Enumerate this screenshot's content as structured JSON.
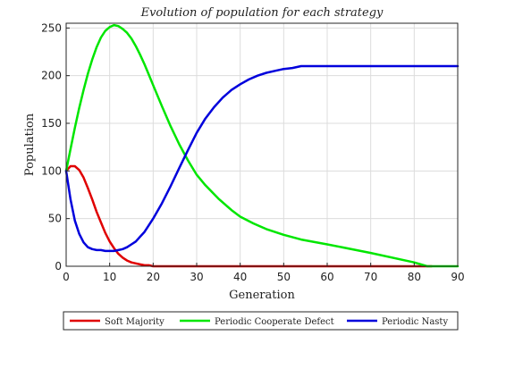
{
  "chart_data": {
    "type": "line",
    "title": "Evolution of population for each strategy",
    "xlabel": "Generation",
    "ylabel": "Population",
    "xlim": [
      0,
      90
    ],
    "ylim": [
      0,
      255
    ],
    "xticks": [
      0,
      10,
      20,
      30,
      40,
      50,
      60,
      70,
      80,
      90
    ],
    "yticks": [
      0,
      50,
      100,
      150,
      200,
      250
    ],
    "grid": true,
    "legend": "bottom-outside",
    "series": [
      {
        "name": "Soft Majority",
        "color": "#e00000",
        "x": [
          0,
          1,
          2,
          3,
          4,
          5,
          6,
          7,
          8,
          9,
          10,
          11,
          12,
          13,
          14,
          15,
          16,
          17,
          18,
          19,
          20,
          25,
          30,
          40,
          50,
          60,
          70,
          80,
          84
        ],
        "y": [
          100,
          105,
          105,
          101,
          93,
          82,
          70,
          57,
          46,
          35,
          26,
          19,
          13,
          9,
          6,
          4,
          3,
          2,
          1,
          1,
          0,
          0,
          0,
          0,
          0,
          0,
          0,
          0,
          0
        ]
      },
      {
        "name": "Periodic Cooperate Defect",
        "color": "#00e600",
        "x": [
          0,
          1,
          2,
          3,
          4,
          5,
          6,
          7,
          8,
          9,
          10,
          11,
          12,
          13,
          14,
          15,
          16,
          17,
          18,
          19,
          20,
          22,
          24,
          26,
          28,
          30,
          32,
          35,
          38,
          40,
          43,
          46,
          50,
          54,
          60,
          70,
          80,
          83,
          84,
          86,
          88,
          90
        ],
        "y": [
          100,
          123,
          145,
          166,
          185,
          202,
          217,
          230,
          240,
          247,
          251,
          253,
          252,
          249,
          245,
          239,
          231,
          222,
          212,
          201,
          190,
          168,
          147,
          128,
          111,
          96,
          85,
          71,
          59,
          52,
          45,
          39,
          33,
          28,
          23,
          14,
          4,
          0,
          0,
          0,
          0,
          0
        ]
      },
      {
        "name": "Periodic Nasty",
        "color": "#0000dc",
        "x": [
          0,
          1,
          2,
          3,
          4,
          5,
          6,
          7,
          8,
          9,
          10,
          11,
          12,
          13,
          14,
          15,
          16,
          17,
          18,
          19,
          20,
          22,
          24,
          26,
          28,
          30,
          32,
          34,
          36,
          38,
          40,
          42,
          44,
          46,
          48,
          50,
          52,
          54,
          60,
          70,
          80,
          90
        ],
        "y": [
          100,
          70,
          48,
          34,
          25,
          20,
          18,
          17,
          17,
          16,
          16,
          16,
          17,
          18,
          20,
          23,
          26,
          31,
          36,
          43,
          50,
          66,
          84,
          103,
          122,
          140,
          155,
          167,
          177,
          185,
          191,
          196,
          200,
          203,
          205,
          207,
          208,
          210,
          210,
          210,
          210,
          210
        ]
      }
    ]
  }
}
